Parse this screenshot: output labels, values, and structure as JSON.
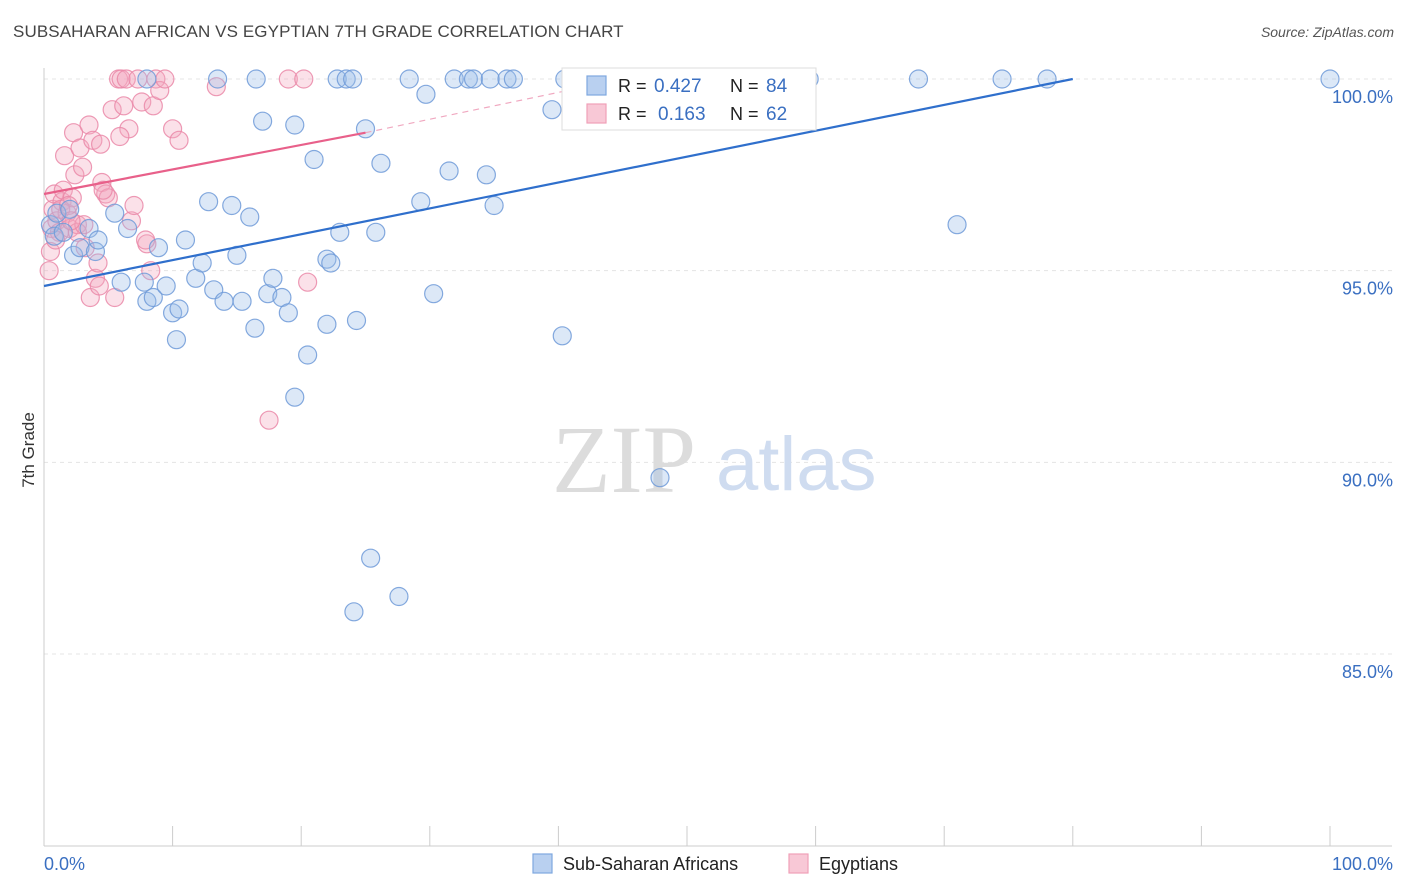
{
  "header": {
    "title": "SUBSAHARAN AFRICAN VS EGYPTIAN 7TH GRADE CORRELATION CHART",
    "source": "Source: ZipAtlas.com"
  },
  "watermark": {
    "zip": "ZIP",
    "atlas": "atlas"
  },
  "chart_data": {
    "type": "scatter",
    "title": "SUBSAHARAN AFRICAN VS EGYPTIAN 7TH GRADE CORRELATION CHART",
    "xlabel": "",
    "ylabel": "7th Grade",
    "xlim": [
      0,
      100
    ],
    "ylim": [
      80.5,
      100.7
    ],
    "x_tick_labels": [
      "0.0%",
      "100.0%"
    ],
    "y_ticks": [
      85,
      90,
      95,
      100
    ],
    "y_tick_labels": [
      "85.0%",
      "90.0%",
      "95.0%",
      "100.0%"
    ],
    "grid": true,
    "legend_stats": [
      {
        "r_label": "R =",
        "r": "0.427",
        "n_label": "N =",
        "n": "84"
      },
      {
        "r_label": "R =",
        "r": "0.163",
        "n_label": "N =",
        "n": "62"
      }
    ],
    "series": [
      {
        "name": "Sub-Saharan Africans",
        "color": "#7ea8e0",
        "line_color": "#2f6fcc",
        "trend": {
          "x0": 0,
          "y0": 94.6,
          "x1": 80,
          "y1": 100.0
        },
        "points": [
          [
            0.5,
            96.2
          ],
          [
            0.8,
            95.9
          ],
          [
            1.0,
            96.5
          ],
          [
            1.5,
            96.0
          ],
          [
            2.0,
            96.6
          ],
          [
            2.3,
            95.4
          ],
          [
            2.8,
            95.6
          ],
          [
            3.5,
            96.1
          ],
          [
            4.0,
            95.5
          ],
          [
            4.2,
            95.8
          ],
          [
            5.5,
            96.5
          ],
          [
            6.5,
            96.1
          ],
          [
            6.0,
            94.7
          ],
          [
            7.8,
            94.7
          ],
          [
            8.0,
            94.2
          ],
          [
            8.5,
            94.3
          ],
          [
            8.9,
            95.6
          ],
          [
            9.5,
            94.6
          ],
          [
            10.0,
            93.9
          ],
          [
            10.3,
            93.2
          ],
          [
            10.5,
            94.0
          ],
          [
            11.0,
            95.8
          ],
          [
            11.8,
            94.8
          ],
          [
            12.3,
            95.2
          ],
          [
            12.8,
            96.8
          ],
          [
            13.2,
            94.5
          ],
          [
            14.0,
            94.2
          ],
          [
            14.6,
            96.7
          ],
          [
            15.0,
            95.4
          ],
          [
            15.4,
            94.2
          ],
          [
            16.0,
            96.4
          ],
          [
            16.4,
            93.5
          ],
          [
            17.0,
            98.9
          ],
          [
            17.4,
            94.4
          ],
          [
            17.8,
            94.8
          ],
          [
            18.5,
            94.3
          ],
          [
            19.0,
            93.9
          ],
          [
            19.5,
            91.7
          ],
          [
            19.5,
            98.8
          ],
          [
            20.5,
            92.8
          ],
          [
            21.0,
            97.9
          ],
          [
            22.0,
            95.3
          ],
          [
            22.3,
            95.2
          ],
          [
            22.8,
            100.0
          ],
          [
            23.0,
            96.0
          ],
          [
            23.5,
            100.0
          ],
          [
            24.1,
            86.1
          ],
          [
            24.3,
            93.7
          ],
          [
            25.0,
            98.7
          ],
          [
            25.4,
            87.5
          ],
          [
            25.8,
            96.0
          ],
          [
            26.2,
            97.8
          ],
          [
            27.6,
            86.5
          ],
          [
            28.4,
            100.0
          ],
          [
            29.3,
            96.8
          ],
          [
            29.7,
            99.6
          ],
          [
            30.3,
            94.4
          ],
          [
            31.5,
            97.6
          ],
          [
            31.9,
            100.0
          ],
          [
            33.0,
            100.0
          ],
          [
            33.4,
            100.0
          ],
          [
            34.4,
            97.5
          ],
          [
            34.7,
            100.0
          ],
          [
            35.0,
            96.7
          ],
          [
            36.0,
            100.0
          ],
          [
            40.3,
            93.3
          ],
          [
            39.5,
            99.2
          ],
          [
            40.5,
            100.0
          ],
          [
            47.3,
            100.0
          ],
          [
            47.9,
            89.6
          ],
          [
            49.0,
            100.0
          ],
          [
            55.0,
            100.0
          ],
          [
            59.5,
            100.0
          ],
          [
            68.0,
            100.0
          ],
          [
            71.0,
            96.2
          ],
          [
            74.5,
            100.0
          ],
          [
            78.0,
            100.0
          ],
          [
            100.0,
            100.0
          ],
          [
            22.0,
            93.6
          ],
          [
            24.0,
            100.0
          ],
          [
            13.5,
            100.0
          ],
          [
            36.5,
            100.0
          ],
          [
            8.0,
            100.0
          ],
          [
            16.5,
            100.0
          ]
        ]
      },
      {
        "name": "Egyptians",
        "color": "#f0a0b8",
        "line_color": "#e8608a",
        "trend": {
          "x0": 0,
          "y0": 97.0,
          "x1": 25,
          "y1": 98.6
        },
        "trend_dashed": {
          "x0": 25,
          "y0": 98.6,
          "x1": 45,
          "y1": 100.0
        },
        "points": [
          [
            0.4,
            95.0
          ],
          [
            0.5,
            95.5
          ],
          [
            0.6,
            96.1
          ],
          [
            0.7,
            96.6
          ],
          [
            0.8,
            97.0
          ],
          [
            1.0,
            96.3
          ],
          [
            1.2,
            96.0
          ],
          [
            1.4,
            96.8
          ],
          [
            1.5,
            97.1
          ],
          [
            1.6,
            98.0
          ],
          [
            1.8,
            96.5
          ],
          [
            2.0,
            96.1
          ],
          [
            2.2,
            96.9
          ],
          [
            2.3,
            98.6
          ],
          [
            2.4,
            97.5
          ],
          [
            2.6,
            96.2
          ],
          [
            2.8,
            98.2
          ],
          [
            3.0,
            97.7
          ],
          [
            3.2,
            95.6
          ],
          [
            3.5,
            98.8
          ],
          [
            3.6,
            94.3
          ],
          [
            3.8,
            98.4
          ],
          [
            4.0,
            94.8
          ],
          [
            4.2,
            95.2
          ],
          [
            4.3,
            94.6
          ],
          [
            4.4,
            98.3
          ],
          [
            4.5,
            97.3
          ],
          [
            4.8,
            97.0
          ],
          [
            5.0,
            96.9
          ],
          [
            5.3,
            99.2
          ],
          [
            5.5,
            94.3
          ],
          [
            5.8,
            100.0
          ],
          [
            6.0,
            100.0
          ],
          [
            6.2,
            99.3
          ],
          [
            6.4,
            100.0
          ],
          [
            6.6,
            98.7
          ],
          [
            6.8,
            96.3
          ],
          [
            7.0,
            96.7
          ],
          [
            7.3,
            100.0
          ],
          [
            7.6,
            99.4
          ],
          [
            8.0,
            95.7
          ],
          [
            8.3,
            95.0
          ],
          [
            8.5,
            99.3
          ],
          [
            8.7,
            100.0
          ],
          [
            9.0,
            99.7
          ],
          [
            10.0,
            98.7
          ],
          [
            10.5,
            98.4
          ],
          [
            13.4,
            99.8
          ],
          [
            17.5,
            91.1
          ],
          [
            19.0,
            100.0
          ],
          [
            20.2,
            100.0
          ],
          [
            20.5,
            94.7
          ],
          [
            1.3,
            96.6
          ],
          [
            2.6,
            96.0
          ],
          [
            0.9,
            95.8
          ],
          [
            1.9,
            96.7
          ],
          [
            3.1,
            96.2
          ],
          [
            2.1,
            96.3
          ],
          [
            4.6,
            97.1
          ],
          [
            5.9,
            98.5
          ],
          [
            7.9,
            95.8
          ],
          [
            9.4,
            100.0
          ]
        ]
      }
    ]
  },
  "bottom_legend": [
    {
      "label": "Sub-Saharan Africans",
      "color": "#7ea8e0"
    },
    {
      "label": "Egyptians",
      "color": "#f0a0b8"
    }
  ]
}
